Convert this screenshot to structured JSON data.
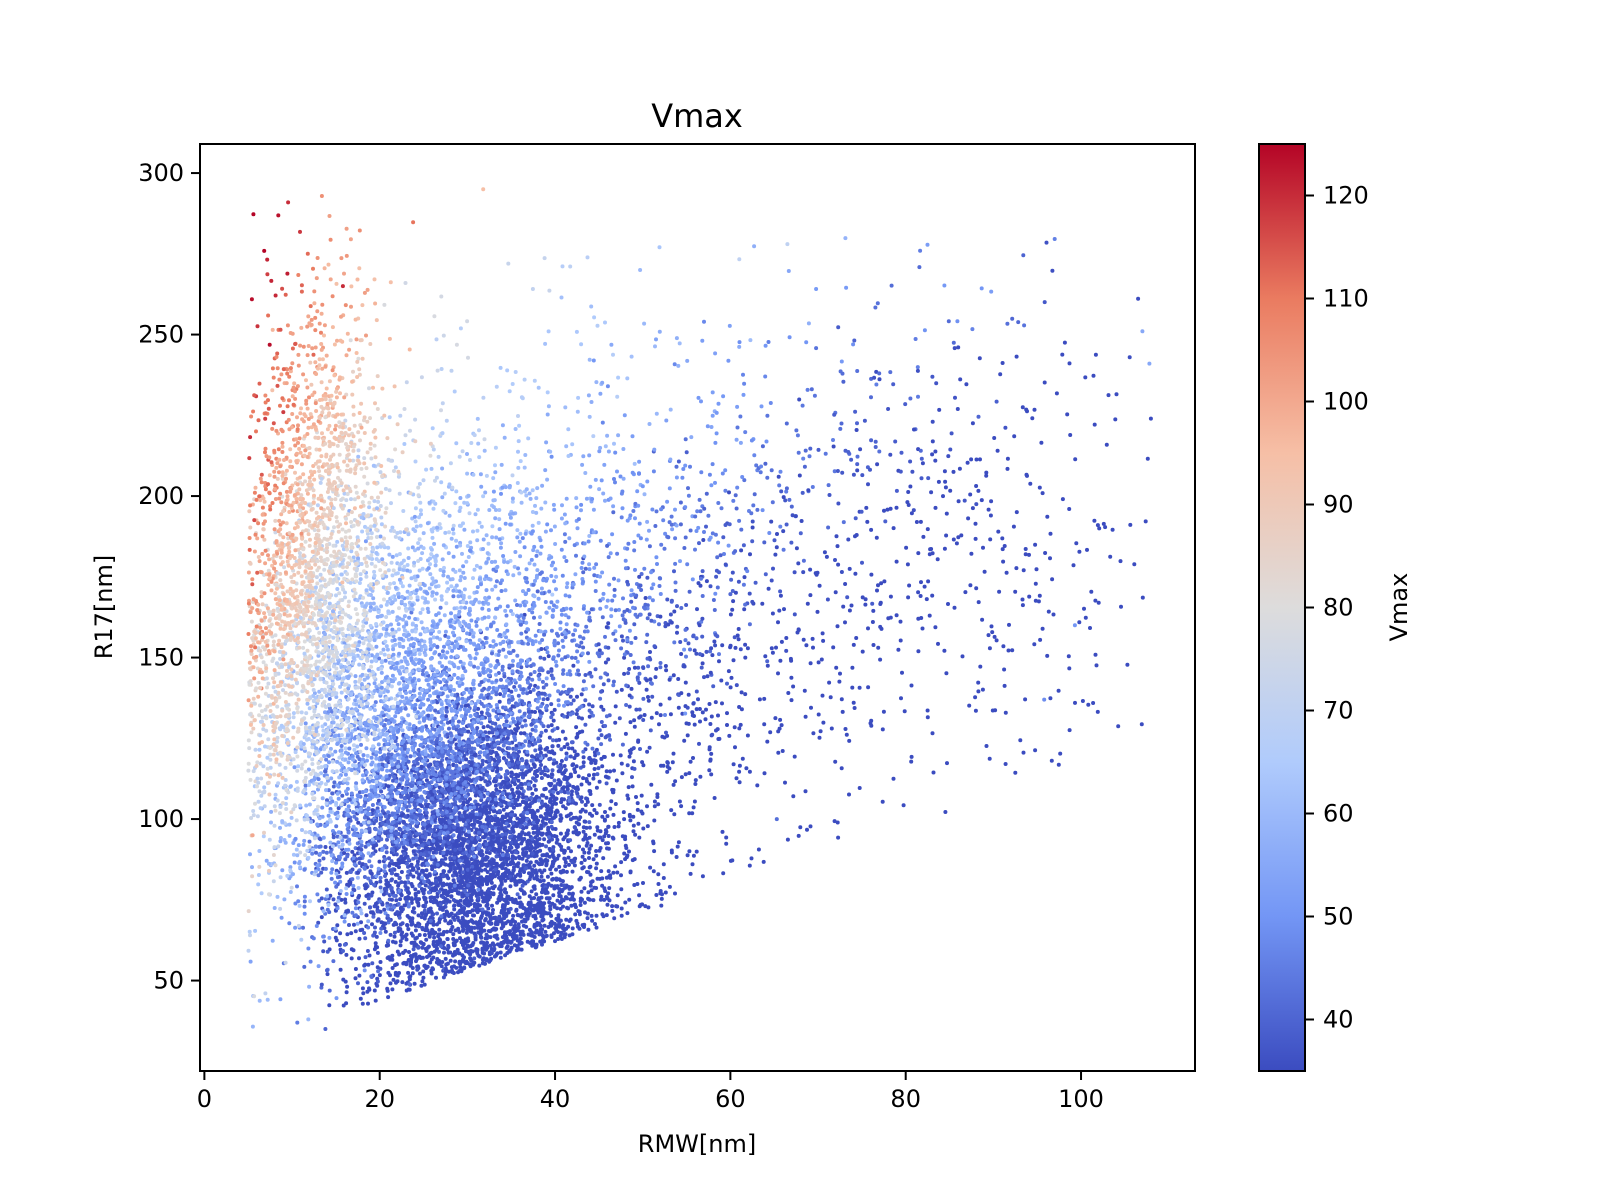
{
  "chart_data": {
    "type": "scatter",
    "title": "Vmax",
    "xlabel": "RMW[nm]",
    "ylabel": "R17[nm]",
    "xlim": [
      -0.5,
      113
    ],
    "ylim": [
      22,
      309
    ],
    "xticks": [
      0,
      20,
      40,
      60,
      80,
      100
    ],
    "yticks": [
      50,
      100,
      150,
      200,
      250,
      300
    ],
    "colorbar": {
      "label": "Vmax",
      "range": [
        35,
        125
      ],
      "ticks": [
        40,
        50,
        60,
        70,
        80,
        90,
        100,
        110,
        120
      ],
      "colormap": "coolwarm",
      "colormap_stops": [
        "#3b4cc0",
        "#7396f5",
        "#b0cbfc",
        "#dddcdc",
        "#f6bfa6",
        "#ea7b60",
        "#b40426"
      ]
    },
    "point_color_rule": "color encodes Vmax; high Vmax (red) at small RMW and large R17, low Vmax (blue) at large RMW / small R17",
    "approx_point_count": 12000,
    "clusters": [
      {
        "x_center": 30,
        "x_sd": 8,
        "y_center": 95,
        "y_sd": 25,
        "vmax_center": 42,
        "share": 0.42
      },
      {
        "x_center": 22,
        "x_sd": 10,
        "y_center": 140,
        "y_sd": 35,
        "vmax_center": 62,
        "share": 0.25
      },
      {
        "x_center": 13,
        "x_sd": 4,
        "y_center": 175,
        "y_sd": 45,
        "vmax_center": 100,
        "share": 0.16
      },
      {
        "x_center": 45,
        "x_sd": 14,
        "y_center": 160,
        "y_sd": 40,
        "vmax_center": 55,
        "share": 0.12
      },
      {
        "x_center": 80,
        "x_sd": 15,
        "y_center": 190,
        "y_sd": 40,
        "vmax_center": 52,
        "share": 0.05
      }
    ],
    "sample_points": [
      {
        "x": 10.6,
        "y": 37,
        "v": 45
      },
      {
        "x": 13.8,
        "y": 35,
        "v": 40
      },
      {
        "x": 31.8,
        "y": 295,
        "v": 95
      },
      {
        "x": 11.8,
        "y": 275,
        "v": 112
      },
      {
        "x": 66.5,
        "y": 278,
        "v": 70
      },
      {
        "x": 107.8,
        "y": 241,
        "v": 55
      },
      {
        "x": 107,
        "y": 251,
        "v": 55
      },
      {
        "x": 99.3,
        "y": 160,
        "v": 50
      },
      {
        "x": 95.8,
        "y": 137,
        "v": 48
      },
      {
        "x": 65.3,
        "y": 100,
        "v": 42
      },
      {
        "x": 5.2,
        "y": 64,
        "v": 72
      },
      {
        "x": 5.5,
        "y": 95,
        "v": 100
      },
      {
        "x": 9,
        "y": 226,
        "v": 118
      },
      {
        "x": 15.8,
        "y": 265,
        "v": 120
      },
      {
        "x": 49.7,
        "y": 270,
        "v": 60
      }
    ]
  }
}
